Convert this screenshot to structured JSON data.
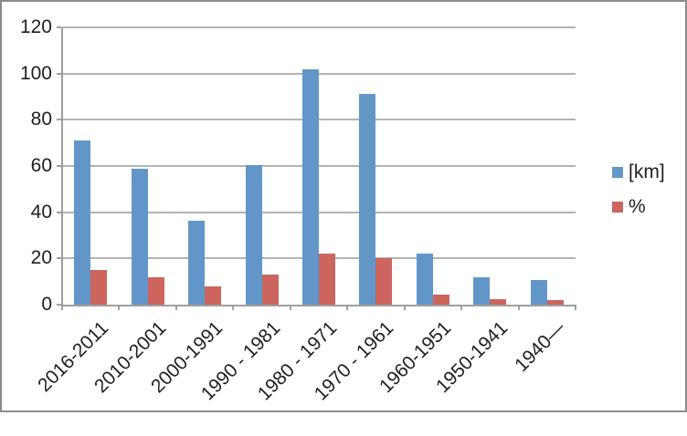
{
  "chart_data": {
    "type": "bar",
    "title": "",
    "xlabel": "",
    "ylabel": "",
    "categories": [
      "2016-2011",
      "2010-2001",
      "2000-1991",
      "1990 - 1981",
      "1980 - 1971",
      "1970 - 1961",
      "1960-1951",
      "1950-1941",
      "1940—"
    ],
    "series": [
      {
        "name": "[km]",
        "color": "#6296C9",
        "values": [
          71,
          59,
          36.5,
          60.5,
          102,
          91,
          22,
          12,
          10.5
        ]
      },
      {
        "name": "%",
        "color": "#CB655E",
        "values": [
          15,
          12,
          8,
          13,
          22,
          20,
          4.5,
          2.5,
          2
        ]
      }
    ],
    "ylim": [
      0,
      120
    ],
    "yticks": [
      0,
      20,
      40,
      60,
      80,
      100,
      120
    ],
    "grid": true,
    "legend_position": "right",
    "x_tick_label_rotation_deg": -45
  },
  "colors": {
    "bar_blue": "#6296C9",
    "bar_red": "#CB655E",
    "gridline": "#B3B3B3",
    "axis": "#9F9F9F",
    "text": "#1F1F1F",
    "frame_border": "#8C8C8C",
    "background": "#FFFFFF"
  }
}
